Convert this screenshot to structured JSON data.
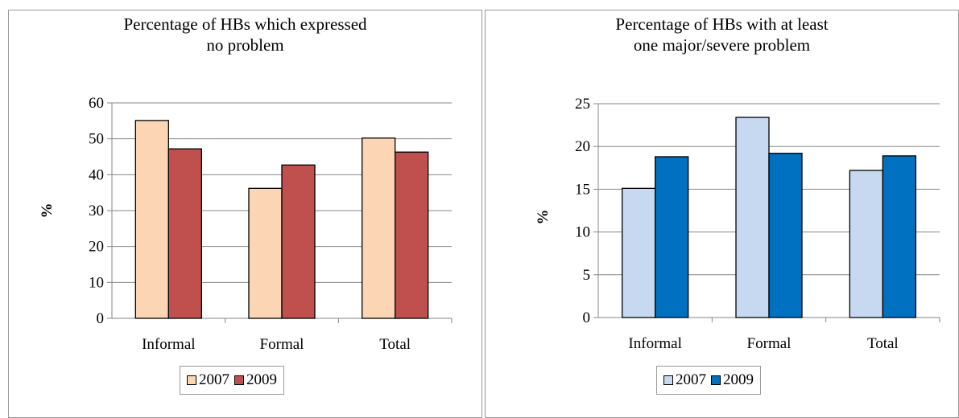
{
  "chart_data": [
    {
      "type": "bar",
      "title_lines": [
        "Percentage of HBs which expressed",
        "no problem"
      ],
      "xlabel": "",
      "ylabel": "%",
      "categories": [
        "Informal",
        "Formal",
        "Total"
      ],
      "ylim": [
        0,
        60
      ],
      "yticks": [
        0,
        10,
        20,
        30,
        40,
        50,
        60
      ],
      "grid": true,
      "legend_position": "bottom",
      "series": [
        {
          "name": "2007",
          "color": "#FCD5B4",
          "values": [
            55.1,
            36.2,
            50.2
          ]
        },
        {
          "name": "2009",
          "color": "#C0504D",
          "values": [
            47.2,
            42.7,
            46.3
          ]
        }
      ]
    },
    {
      "type": "bar",
      "title_lines": [
        "Percentage of HBs with at least",
        "one major/severe problem"
      ],
      "xlabel": "",
      "ylabel": "%",
      "categories": [
        "Informal",
        "Formal",
        "Total"
      ],
      "ylim": [
        0,
        25
      ],
      "yticks": [
        0,
        5,
        10,
        15,
        20,
        25
      ],
      "grid": true,
      "legend_position": "bottom",
      "series": [
        {
          "name": "2007",
          "color": "#C6D9F1",
          "values": [
            15.1,
            23.4,
            17.2
          ]
        },
        {
          "name": "2009",
          "color": "#0070C0",
          "values": [
            18.8,
            19.2,
            18.9
          ]
        }
      ]
    }
  ]
}
